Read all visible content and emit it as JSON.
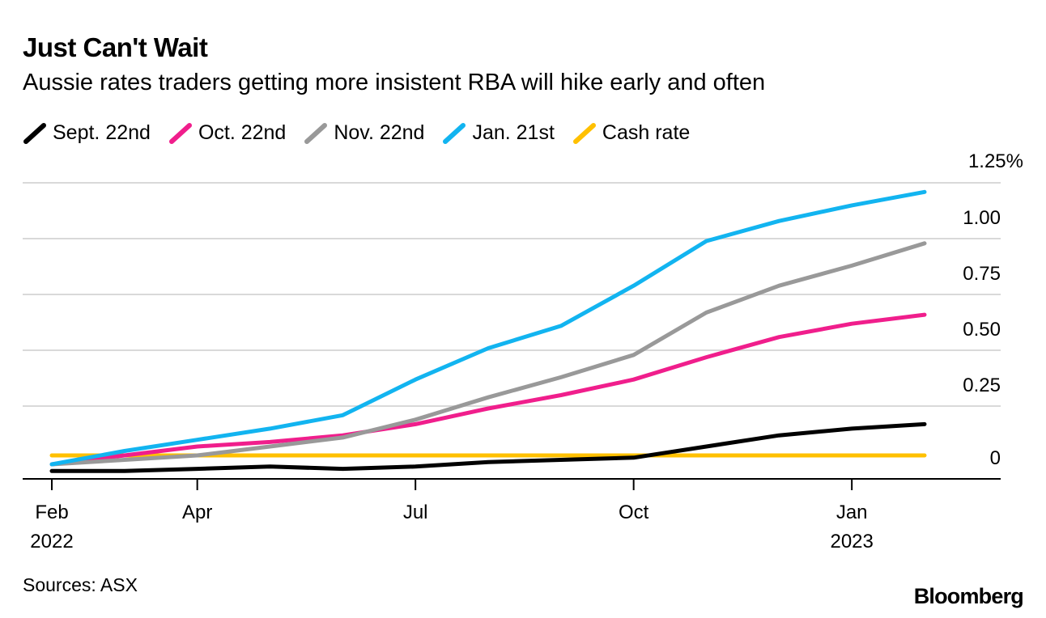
{
  "chart_data": {
    "type": "line",
    "title": "Just Can't Wait",
    "subtitle": "Aussie rates traders getting more insistent RBA will hike early and often",
    "x_labels": [
      "Feb",
      "Apr",
      "Jul",
      "Oct",
      "Jan"
    ],
    "x_years": [
      "2022",
      "",
      "",
      "",
      "2023"
    ],
    "x_label_months": [
      0,
      2,
      5,
      8,
      11
    ],
    "x_months": [
      0,
      1,
      2,
      3,
      4,
      5,
      6,
      7,
      8,
      9,
      10,
      11,
      12
    ],
    "xlim": [
      -0.4,
      12.9
    ],
    "y_ticks": [
      0,
      0.25,
      0.5,
      0.75,
      1.0,
      1.25
    ],
    "y_tick_labels": [
      "0",
      "0.25",
      "0.50",
      "0.75",
      "1.00",
      "1.25%"
    ],
    "ylim": [
      -0.1,
      1.3
    ],
    "series": [
      {
        "name": "Sept. 22nd",
        "color": "#000000",
        "values": [
          -0.07,
          -0.07,
          -0.06,
          -0.05,
          -0.06,
          -0.05,
          -0.03,
          -0.02,
          -0.01,
          0.04,
          0.09,
          0.12,
          0.14
        ]
      },
      {
        "name": "Oct. 22nd",
        "color": "#f01e8c",
        "values": [
          -0.04,
          0.0,
          0.04,
          0.06,
          0.09,
          0.14,
          0.21,
          0.27,
          0.34,
          0.44,
          0.53,
          0.59,
          0.63
        ]
      },
      {
        "name": "Nov. 22nd",
        "color": "#999999",
        "values": [
          -0.04,
          -0.02,
          0.0,
          0.04,
          0.08,
          0.16,
          0.26,
          0.35,
          0.45,
          0.64,
          0.76,
          0.85,
          0.95
        ]
      },
      {
        "name": "Jan. 21st",
        "color": "#12b4f0",
        "values": [
          -0.04,
          0.02,
          0.07,
          0.12,
          0.18,
          0.34,
          0.48,
          0.58,
          0.76,
          0.96,
          1.05,
          1.12,
          1.18
        ]
      },
      {
        "name": "Cash rate",
        "color": "#ffc000",
        "values": [
          0.0,
          0.0,
          0.0,
          0.0,
          0.0,
          0.0,
          0.0,
          0.0,
          0.0,
          0.0,
          0.0,
          0.0,
          0.0
        ]
      }
    ],
    "legend_position": "top-left",
    "grid": true
  },
  "footer": {
    "source": "Sources: ASX",
    "brand": "Bloomberg"
  }
}
